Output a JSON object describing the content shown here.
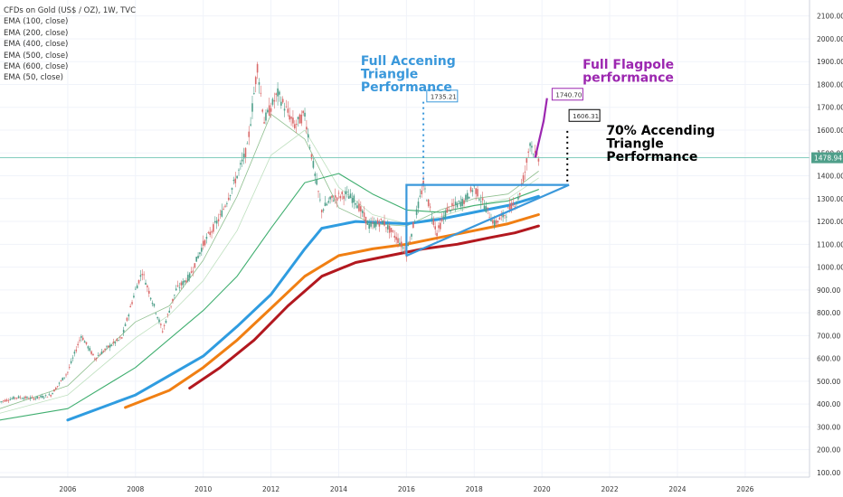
{
  "chart_data": {
    "type": "line",
    "title": "CFDs on Gold (US$ / OZ), 1W, TVC",
    "indicators": [
      "EMA (100, close)",
      "EMA (200, close)",
      "EMA (400, close)",
      "EMA (500, close)",
      "EMA (600, close)",
      "EMA (50, close)"
    ],
    "xlabel": "",
    "ylabel": "",
    "xlim": [
      2004.0,
      2027.9
    ],
    "ylim": [
      80,
      2170
    ],
    "x_ticks": [
      "2006",
      "2008",
      "2010",
      "2012",
      "2014",
      "2016",
      "2018",
      "2020",
      "2022",
      "2024",
      "2026"
    ],
    "y_ticks": [
      "2100.00",
      "2000.00",
      "1900.00",
      "1800.00",
      "1700.00",
      "1600.00",
      "1500.00",
      "1400.00",
      "1300.00",
      "1200.00",
      "1100.00",
      "1000.00",
      "900.00",
      "800.00",
      "700.00",
      "600.00",
      "500.00",
      "400.00",
      "300.00",
      "200.00",
      "100.00"
    ],
    "last_price": "1478.94",
    "grid": true,
    "price_series": {
      "name": "Gold weekly",
      "color": "#3d8c6e",
      "x": [
        2004.0,
        2004.5,
        2005.0,
        2005.5,
        2006.0,
        2006.4,
        2006.8,
        2007.2,
        2007.6,
        2008.0,
        2008.2,
        2008.8,
        2009.2,
        2009.6,
        2010.0,
        2010.5,
        2011.0,
        2011.3,
        2011.6,
        2011.8,
        2012.2,
        2012.7,
        2013.0,
        2013.3,
        2013.5,
        2013.8,
        2014.2,
        2014.5,
        2014.9,
        2015.3,
        2015.8,
        2016.0,
        2016.5,
        2016.9,
        2017.2,
        2017.7,
        2018.0,
        2018.6,
        2018.9,
        2019.3,
        2019.5,
        2019.65,
        2019.8,
        2019.9
      ],
      "y": [
        410,
        430,
        425,
        440,
        540,
        700,
        600,
        650,
        690,
        900,
        980,
        720,
        900,
        960,
        1100,
        1220,
        1400,
        1520,
        1880,
        1640,
        1760,
        1620,
        1670,
        1400,
        1250,
        1300,
        1320,
        1290,
        1180,
        1200,
        1110,
        1060,
        1360,
        1150,
        1250,
        1290,
        1350,
        1190,
        1230,
        1300,
        1420,
        1550,
        1490,
        1479
      ]
    },
    "ema_series": [
      {
        "period": 50,
        "color": "#8fbf8f",
        "x": [
          2004.0,
          2006.0,
          2008.0,
          2009.0,
          2010.0,
          2011.0,
          2012.0,
          2013.0,
          2014.0,
          2015.0,
          2016.0,
          2017.0,
          2018.0,
          2019.0,
          2019.9
        ],
        "y": [
          380,
          480,
          760,
          830,
          1030,
          1310,
          1670,
          1560,
          1260,
          1190,
          1180,
          1250,
          1300,
          1320,
          1420
        ]
      },
      {
        "period": 100,
        "color": "#bfe0bf",
        "x": [
          2004.0,
          2006.0,
          2008.0,
          2009.0,
          2010.0,
          2011.0,
          2012.0,
          2013.0,
          2014.0,
          2015.0,
          2016.0,
          2017.0,
          2018.0,
          2019.0,
          2019.9
        ],
        "y": [
          360,
          440,
          690,
          790,
          940,
          1160,
          1490,
          1600,
          1350,
          1230,
          1190,
          1220,
          1270,
          1300,
          1390
        ]
      },
      {
        "period": 200,
        "color": "#3fae6f",
        "x": [
          2004.0,
          2006.0,
          2008.0,
          2010.0,
          2011.0,
          2012.0,
          2013.0,
          2014.0,
          2015.0,
          2016.0,
          2017.0,
          2018.0,
          2019.0,
          2019.9
        ],
        "y": [
          330,
          380,
          560,
          810,
          960,
          1170,
          1370,
          1410,
          1320,
          1250,
          1240,
          1270,
          1290,
          1340
        ]
      },
      {
        "period": 400,
        "color": "#2f9ce0",
        "x": [
          2006.0,
          2008.0,
          2010.0,
          2011.0,
          2012.0,
          2013.0,
          2013.5,
          2014.5,
          2016.0,
          2017.0,
          2018.0,
          2019.0,
          2019.9
        ],
        "y": [
          330,
          440,
          610,
          740,
          880,
          1080,
          1170,
          1200,
          1190,
          1210,
          1240,
          1270,
          1310
        ]
      },
      {
        "period": 500,
        "color": "#f07f13",
        "x": [
          2007.7,
          2009.0,
          2010.0,
          2011.0,
          2012.0,
          2013.0,
          2014.0,
          2015.0,
          2016.0,
          2017.0,
          2018.0,
          2019.0,
          2019.9
        ],
        "y": [
          385,
          460,
          560,
          680,
          820,
          960,
          1050,
          1080,
          1100,
          1130,
          1160,
          1190,
          1230
        ]
      },
      {
        "period": 600,
        "color": "#b2181f",
        "x": [
          2009.6,
          2010.5,
          2011.5,
          2012.5,
          2013.5,
          2014.5,
          2015.5,
          2016.5,
          2017.5,
          2018.5,
          2019.2,
          2019.9
        ],
        "y": [
          470,
          560,
          680,
          830,
          960,
          1020,
          1050,
          1080,
          1100,
          1130,
          1150,
          1180
        ]
      }
    ],
    "annotations": {
      "triangle_label": "Full Accening\nTriangle\nPerformance",
      "triangle_target": "1735.21",
      "flagpole_label": "Full Flagpole\nperformance",
      "flagpole_target": "1740.70",
      "partial_label": "70% Accending\nTriangle\nPerformance",
      "partial_target": "1606.31"
    },
    "colors": {
      "triangle": "#3a98db",
      "flagpole": "#9c27b0",
      "partial": "#000000",
      "last_price_line": "#72c6b5"
    }
  }
}
